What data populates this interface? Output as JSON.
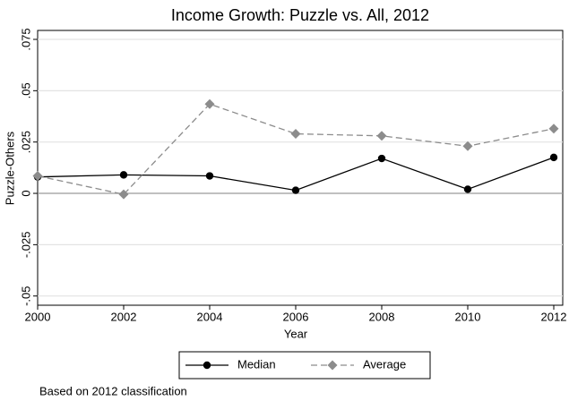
{
  "chart_data": {
    "type": "line",
    "title": "Income Growth: Puzzle vs. All, 2012",
    "x_label": "Year",
    "y_label": "Puzzle-Others",
    "note": "Based on 2012 classification",
    "x": [
      2000,
      2002,
      2004,
      2006,
      2008,
      2010,
      2012
    ],
    "series": [
      {
        "name": "Median",
        "color": "#000000",
        "marker": "circle",
        "dashed": false,
        "values": [
          0.008,
          0.009,
          0.0085,
          0.0015,
          0.017,
          0.002,
          0.0175
        ]
      },
      {
        "name": "Average",
        "color": "#8c8c8c",
        "marker": "diamond",
        "dashed": true,
        "values": [
          0.0085,
          -0.0005,
          0.0435,
          0.029,
          0.028,
          0.023,
          0.0315
        ]
      }
    ],
    "xlim": [
      2000,
      2012
    ],
    "xticks": [
      2000,
      2002,
      2004,
      2006,
      2008,
      2010,
      2012
    ],
    "ylim": [
      -0.05,
      0.075
    ],
    "yticks": [
      {
        "value": -0.05,
        "label": "-.05"
      },
      {
        "value": -0.025,
        "label": "-.025"
      },
      0,
      {
        "value": 0.025,
        "label": ".025"
      },
      {
        "value": 0.05,
        "label": ".05"
      },
      {
        "value": 0.075,
        "label": ".075"
      }
    ],
    "grid": true,
    "legend": "bottom"
  }
}
